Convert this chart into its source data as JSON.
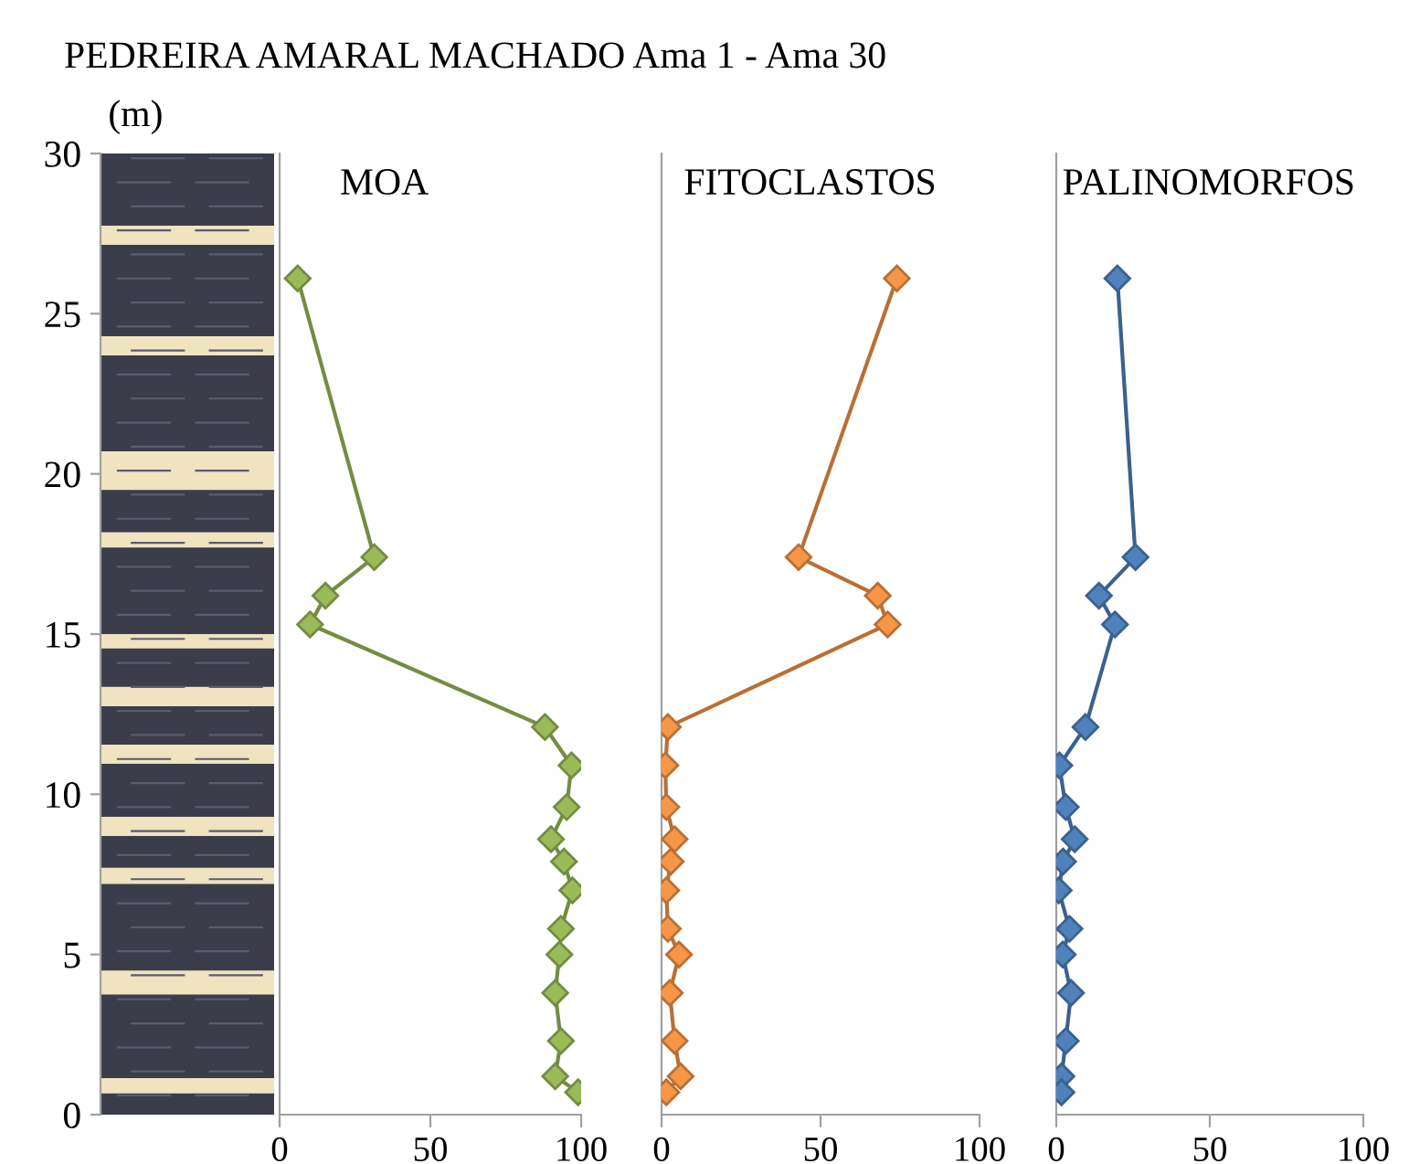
{
  "chart_data": [
    {
      "type": "line",
      "title": "PEDREIRA AMARAL MACHADO Ama 1 - Ama 30",
      "ylabel": "(m)",
      "annotations": [
        "MOA"
      ],
      "xlim": [
        0,
        100
      ],
      "xticks": [
        0,
        50,
        100
      ],
      "ylim": [
        0,
        30
      ],
      "yticks": [
        0,
        5,
        10,
        15,
        20,
        25,
        30
      ],
      "marker": "diamond",
      "line_style": "solid",
      "grid": false,
      "legend": false,
      "series": [
        {
          "color": "#9bbb59",
          "x": [
            6,
            31.4,
            15.2,
            10.1,
            88,
            96.8,
            95.2,
            90,
            94.3,
            97.1,
            93.3,
            92.8,
            91.4,
            93.3,
            91.4,
            99
          ],
          "values": [
            26.1,
            17.4,
            16.2,
            15.3,
            12.1,
            10.9,
            9.6,
            8.6,
            7.9,
            7.0,
            5.8,
            5.0,
            3.8,
            2.3,
            1.2,
            0.7
          ]
        }
      ]
    },
    {
      "type": "line",
      "annotations": [
        "FITOCLASTOS"
      ],
      "xlim": [
        0,
        100
      ],
      "xticks": [
        0,
        50,
        100
      ],
      "ylim": [
        0,
        30
      ],
      "tick_labels": "x",
      "marker": "diamond",
      "line_style": "solid",
      "grid": false,
      "legend": false,
      "series": [
        {
          "color": "#f79646",
          "x": [
            74,
            43.1,
            68,
            71.1,
            2,
            1.2,
            1.5,
            4.1,
            2.9,
            1.5,
            2,
            5.5,
            2.6,
            4.1,
            6,
            1.5
          ],
          "values": [
            26.1,
            17.4,
            16.2,
            15.3,
            12.1,
            10.9,
            9.6,
            8.6,
            7.9,
            7.0,
            5.8,
            5.0,
            3.8,
            2.3,
            1.2,
            0.7
          ]
        }
      ]
    },
    {
      "type": "line",
      "annotations": [
        "PALINOMORFOS"
      ],
      "xlim": [
        0,
        100
      ],
      "xticks": [
        0,
        50,
        100
      ],
      "ylim": [
        0,
        30
      ],
      "tick_labels": "x",
      "marker": "diamond",
      "line_style": "solid",
      "grid": false,
      "legend": false,
      "series": [
        {
          "color": "#4f81bd",
          "x": [
            19.9,
            25.8,
            13.9,
            19.1,
            9.5,
            1,
            3.1,
            6,
            2.2,
            0.8,
            4.3,
            2.1,
            4.8,
            3.1,
            1.7,
            1.7
          ],
          "values": [
            26.1,
            17.4,
            16.2,
            15.3,
            12.1,
            10.9,
            9.6,
            8.6,
            7.9,
            7.0,
            5.8,
            5.0,
            3.8,
            2.3,
            1.2,
            0.7
          ]
        }
      ]
    }
  ]
}
